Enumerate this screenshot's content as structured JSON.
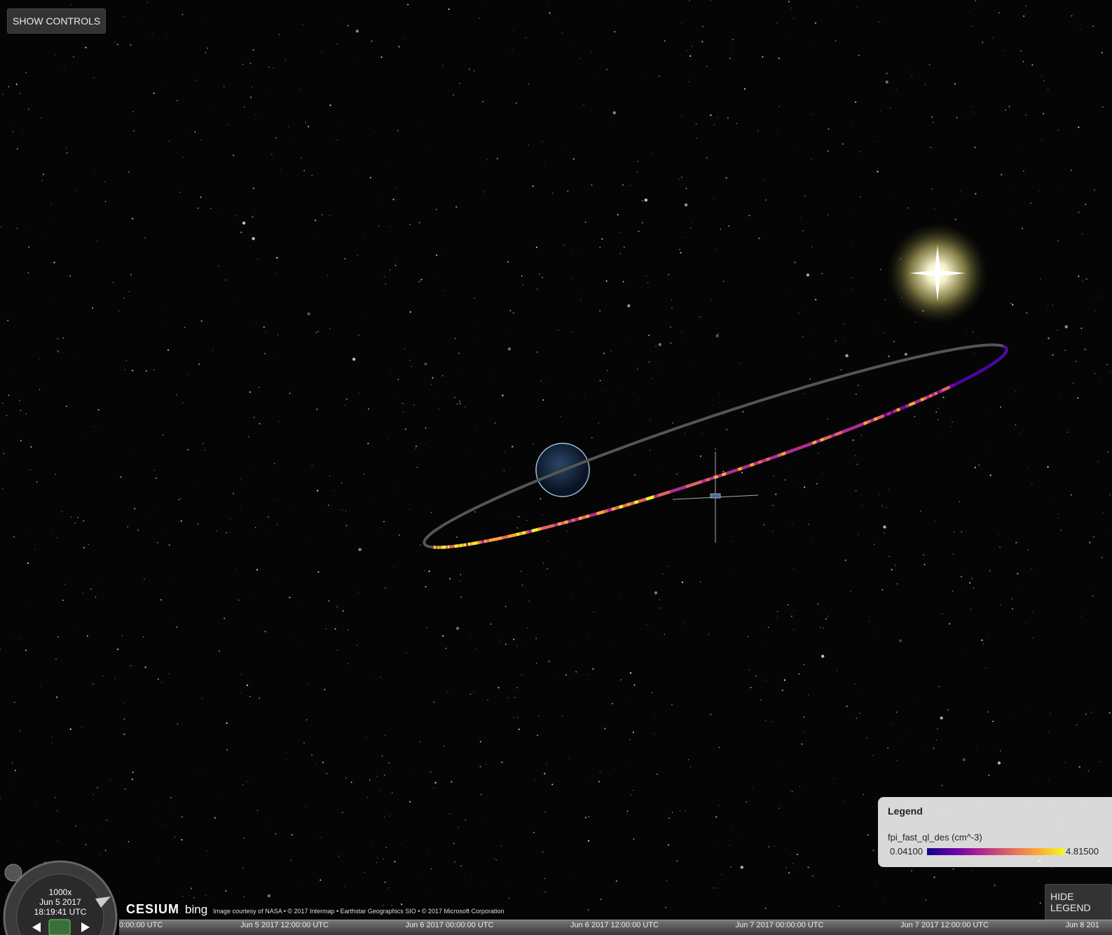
{
  "controls": {
    "show_controls": "SHOW CONTROLS",
    "hide_legend": "HIDE LEGEND"
  },
  "legend": {
    "title": "Legend",
    "variable": "fpi_fast_ql_des (cm^-3)",
    "min_label": "0.04100",
    "max_label": "4.81500"
  },
  "clock": {
    "speed": "1000x",
    "date": "Jun 5 2017",
    "time": "18:19:41 UTC"
  },
  "credits": {
    "logo": "CESIUM",
    "bing": "bing",
    "text": "Image courtesy of NASA • © 2017 Intermap • Earthstar Geographics SIO • © 2017 Microsoft Corporation"
  },
  "timeline": {
    "labels": [
      "0:00:00 UTC",
      "Jun 5 2017 12:00:00 UTC",
      "Jun 6 2017 00:00:00 UTC",
      "Jun 6 2017 12:00:00 UTC",
      "Jun 7 2017 00:00:00 UTC",
      "Jun 7 2017 12:00:00 UTC",
      "Jun 8 201"
    ]
  }
}
